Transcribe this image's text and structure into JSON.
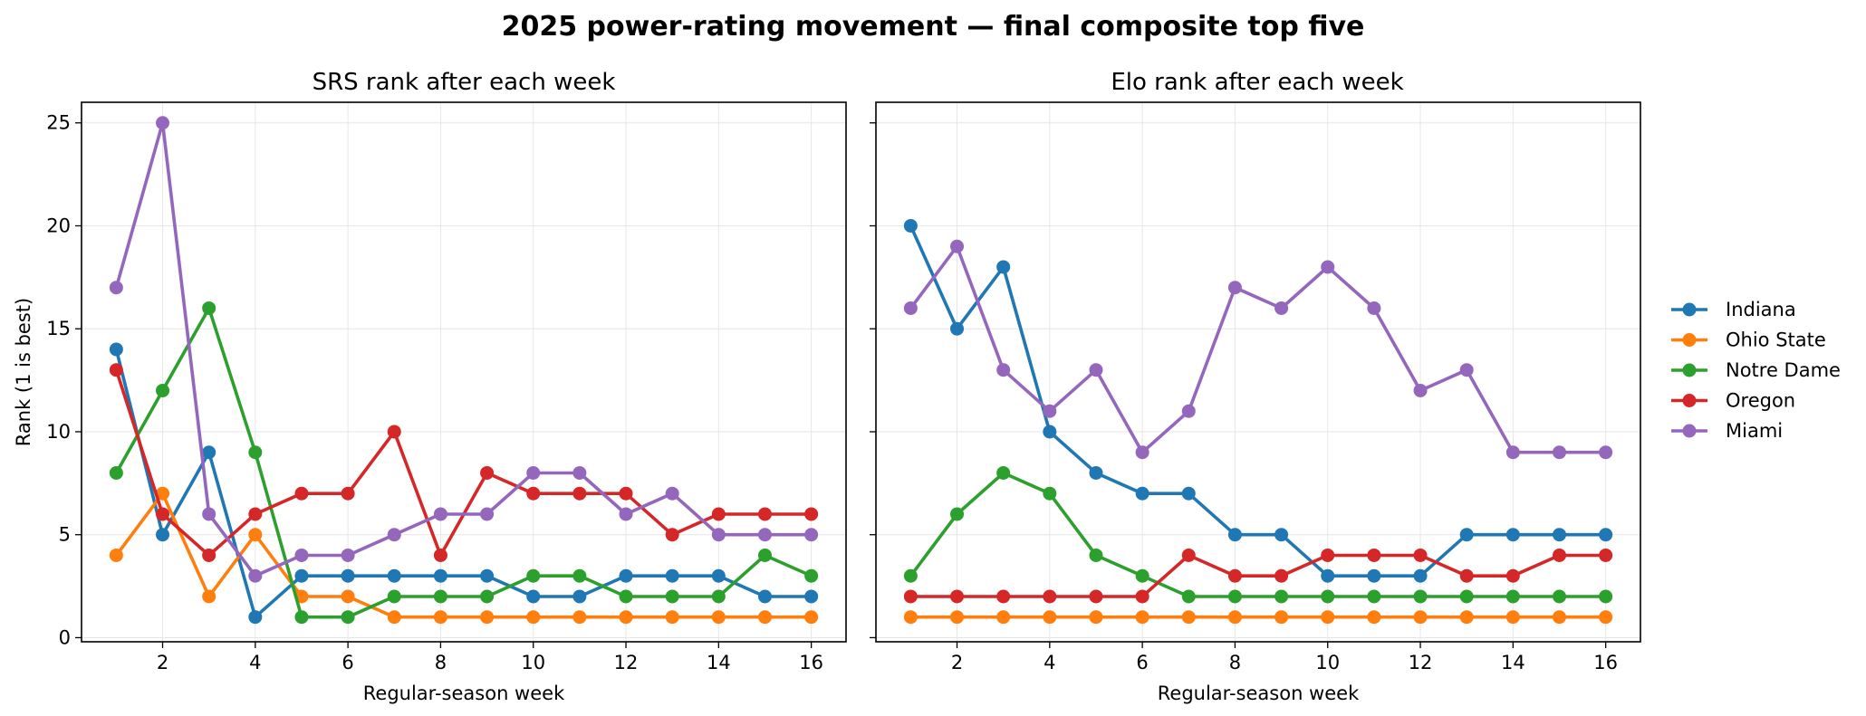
{
  "figure": {
    "title": "2025 power-rating movement — final composite top five"
  },
  "legend": {
    "placement": "right",
    "entries": [
      "Indiana",
      "Ohio State",
      "Notre Dame",
      "Oregon",
      "Miami"
    ]
  },
  "colors": {
    "Indiana": "#1f77b4",
    "Ohio State": "#ff7f0e",
    "Notre Dame": "#2ca02c",
    "Oregon": "#d62728",
    "Miami": "#9467bd"
  },
  "chart_data": [
    {
      "type": "line",
      "title": "SRS rank after each week",
      "xlabel": "Regular-season week",
      "ylabel": "Rank (1 is best)",
      "x": [
        1,
        2,
        3,
        4,
        5,
        6,
        7,
        8,
        9,
        10,
        11,
        12,
        13,
        14,
        15,
        16
      ],
      "xticks": [
        2,
        4,
        6,
        8,
        10,
        12,
        14,
        16
      ],
      "yticks": [
        0,
        5,
        10,
        15,
        20,
        25
      ],
      "xlim": [
        0.25,
        16.75
      ],
      "ylim": [
        -0.2,
        26.0
      ],
      "grid": true,
      "series": [
        {
          "name": "Indiana",
          "values": [
            14,
            5,
            9,
            1,
            3,
            3,
            3,
            3,
            3,
            2,
            2,
            3,
            3,
            3,
            2,
            2
          ]
        },
        {
          "name": "Ohio State",
          "values": [
            4,
            7,
            2,
            5,
            2,
            2,
            1,
            1,
            1,
            1,
            1,
            1,
            1,
            1,
            1,
            1
          ]
        },
        {
          "name": "Notre Dame",
          "values": [
            8,
            12,
            16,
            9,
            1,
            1,
            2,
            2,
            2,
            3,
            3,
            2,
            2,
            2,
            4,
            3
          ]
        },
        {
          "name": "Oregon",
          "values": [
            13,
            6,
            4,
            6,
            7,
            7,
            10,
            4,
            8,
            7,
            7,
            7,
            5,
            6,
            6,
            6
          ]
        },
        {
          "name": "Miami",
          "values": [
            17,
            25,
            6,
            3,
            4,
            4,
            5,
            6,
            6,
            8,
            8,
            6,
            7,
            5,
            5,
            5
          ]
        }
      ]
    },
    {
      "type": "line",
      "title": "Elo rank after each week",
      "xlabel": "Regular-season week",
      "ylabel": "",
      "x": [
        1,
        2,
        3,
        4,
        5,
        6,
        7,
        8,
        9,
        10,
        11,
        12,
        13,
        14,
        15,
        16
      ],
      "xticks": [
        2,
        4,
        6,
        8,
        10,
        12,
        14,
        16
      ],
      "yticks": [
        0,
        5,
        10,
        15,
        20,
        25
      ],
      "xlim": [
        0.25,
        16.75
      ],
      "ylim": [
        -0.2,
        26.0
      ],
      "grid": true,
      "series": [
        {
          "name": "Indiana",
          "values": [
            20,
            15,
            18,
            10,
            8,
            7,
            7,
            5,
            5,
            3,
            3,
            3,
            5,
            5,
            5,
            5
          ]
        },
        {
          "name": "Ohio State",
          "values": [
            1,
            1,
            1,
            1,
            1,
            1,
            1,
            1,
            1,
            1,
            1,
            1,
            1,
            1,
            1,
            1
          ]
        },
        {
          "name": "Notre Dame",
          "values": [
            3,
            6,
            8,
            7,
            4,
            3,
            2,
            2,
            2,
            2,
            2,
            2,
            2,
            2,
            2,
            2
          ]
        },
        {
          "name": "Oregon",
          "values": [
            2,
            2,
            2,
            2,
            2,
            2,
            4,
            3,
            3,
            4,
            4,
            4,
            3,
            3,
            4,
            4
          ]
        },
        {
          "name": "Miami",
          "values": [
            16,
            19,
            13,
            11,
            13,
            9,
            11,
            17,
            16,
            18,
            16,
            12,
            13,
            9,
            9,
            9
          ]
        }
      ]
    }
  ]
}
